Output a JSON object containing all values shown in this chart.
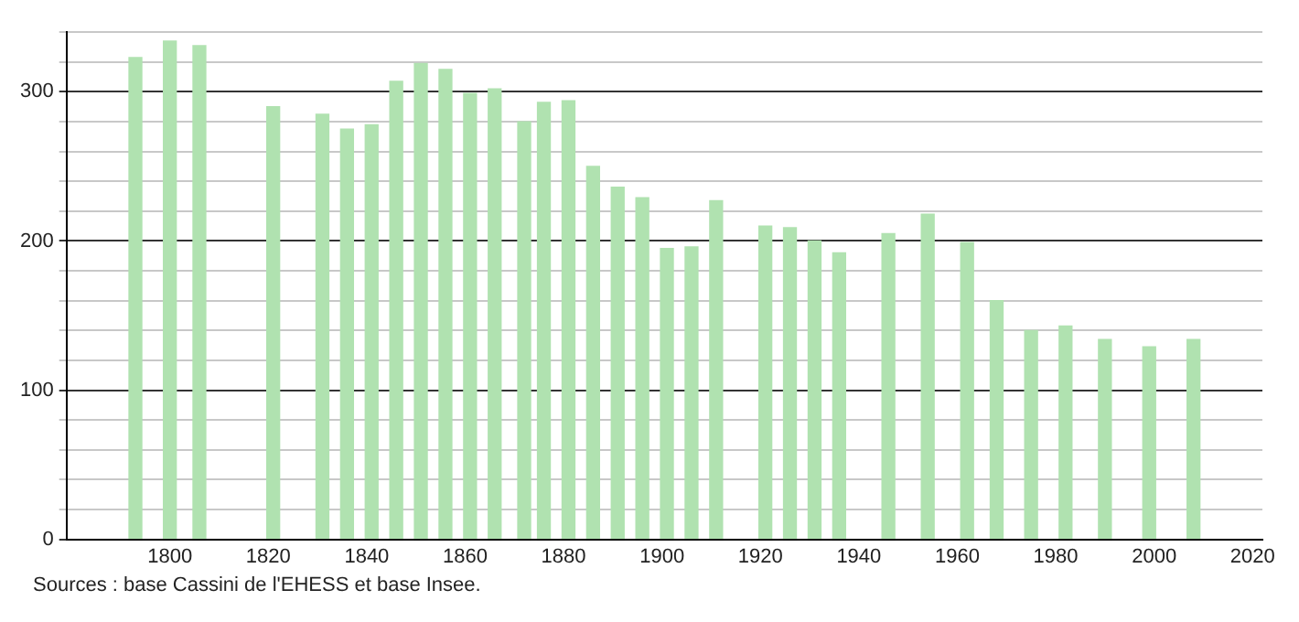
{
  "chart_data": {
    "type": "bar",
    "x": [
      1793,
      1800,
      1806,
      1821,
      1831,
      1836,
      1841,
      1846,
      1851,
      1856,
      1861,
      1866,
      1872,
      1876,
      1881,
      1886,
      1891,
      1896,
      1901,
      1906,
      1911,
      1921,
      1926,
      1931,
      1936,
      1946,
      1954,
      1962,
      1968,
      1975,
      1982,
      1990,
      1999,
      2008
    ],
    "values": [
      323,
      334,
      331,
      290,
      285,
      275,
      278,
      307,
      319,
      315,
      299,
      302,
      280,
      293,
      294,
      250,
      236,
      229,
      195,
      196,
      227,
      210,
      209,
      200,
      192,
      205,
      218,
      199,
      160,
      140,
      143,
      134,
      129,
      134
    ],
    "color": "#b0e2b0",
    "xlim": [
      1779,
      2022
    ],
    "xticks": [
      1800,
      1820,
      1840,
      1860,
      1880,
      1900,
      1920,
      1940,
      1960,
      1980,
      2000,
      2020
    ],
    "ylim": [
      0,
      340
    ],
    "yticks": [
      0,
      {
        "value": 20,
        "label": null
      },
      {
        "value": 40,
        "label": null
      },
      {
        "value": 60,
        "label": null
      },
      {
        "value": 80,
        "label": null
      },
      100,
      {
        "value": 120,
        "label": null
      },
      {
        "value": 140,
        "label": null
      },
      {
        "value": 160,
        "label": null
      },
      {
        "value": 180,
        "label": null
      },
      200,
      {
        "value": 220,
        "label": null
      },
      {
        "value": 240,
        "label": null
      },
      {
        "value": 260,
        "label": null
      },
      {
        "value": 280,
        "label": null
      },
      300,
      {
        "value": 320,
        "label": null
      },
      {
        "value": 340,
        "label": null
      }
    ],
    "grid": "y",
    "annotations": [
      "Sources : base Cassini de l'EHESS et base Insee."
    ]
  }
}
